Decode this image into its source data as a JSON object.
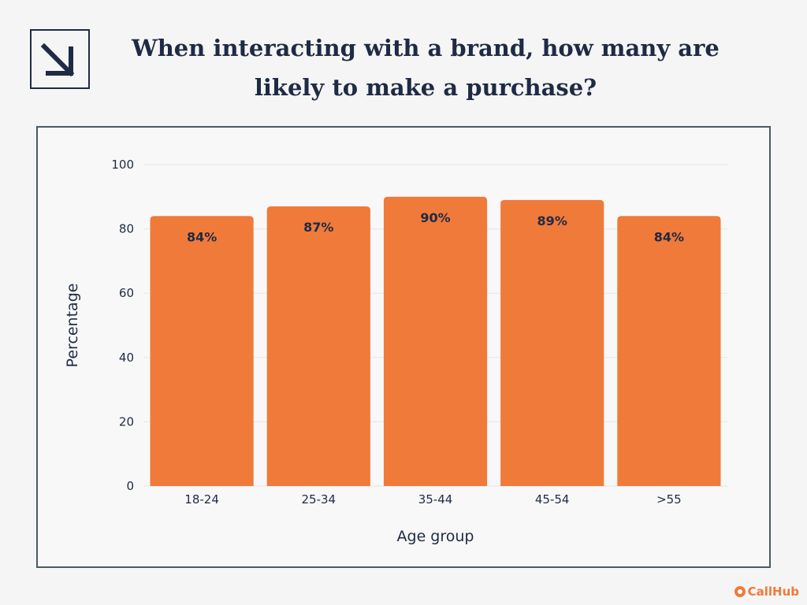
{
  "title": "When interacting with a brand, how many are likely to make a purchase?",
  "brand": {
    "name": "CallHub",
    "color": "#f07a3a"
  },
  "colors": {
    "bar": "#f07a3a",
    "text": "#1f2a44",
    "grid": "#e5e5e5"
  },
  "chart_data": {
    "type": "bar",
    "title": "",
    "categories": [
      "18-24",
      "25-34",
      "35-44",
      "45-54",
      ">55"
    ],
    "values": [
      84,
      87,
      90,
      89,
      84
    ],
    "data_labels": [
      "84%",
      "87%",
      "90%",
      "89%",
      "84%"
    ],
    "xlabel": "Age group",
    "ylabel": "Percentage",
    "ylim": [
      0,
      100
    ],
    "yticks": [
      0,
      20,
      40,
      60,
      80,
      100
    ],
    "grid": true,
    "legend": "none"
  }
}
